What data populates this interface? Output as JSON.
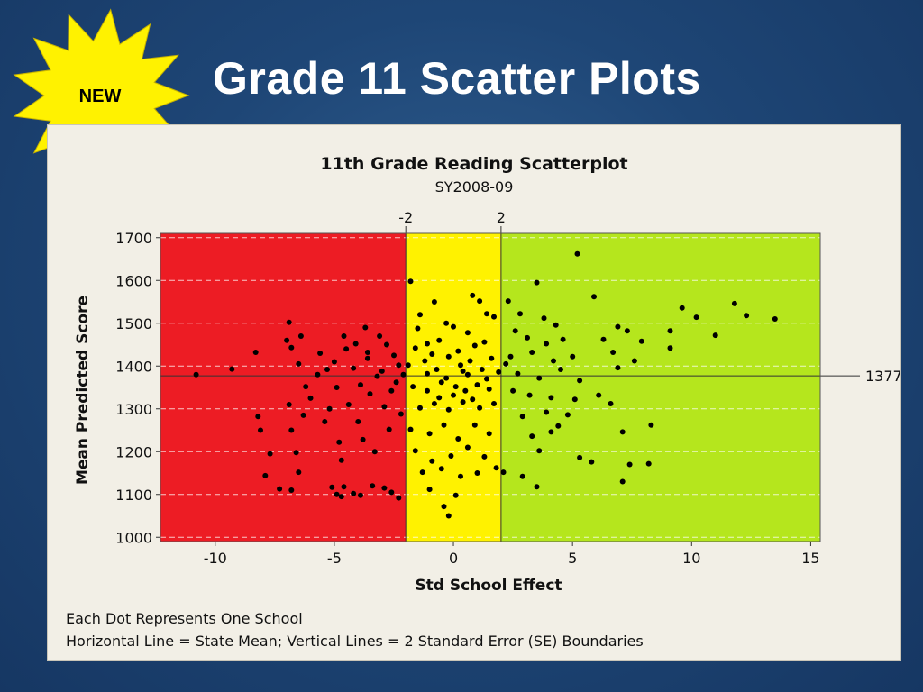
{
  "slide": {
    "title": "Grade 11 Scatter Plots",
    "badge": "NEW"
  },
  "colors": {
    "background": "#1e4676",
    "zone_red": "#ed1c24",
    "zone_yellow": "#fff200",
    "zone_green": "#b5e61d",
    "badge_fill": "#fff200",
    "dot": "#000000"
  },
  "chart_data": {
    "type": "scatter",
    "title": "11th Grade Reading Scatterplot",
    "subtitle": "SY2008-09",
    "xlabel": "Std School Effect",
    "ylabel": "Mean Predicted Score",
    "xlim": [
      -12.3,
      15.4
    ],
    "ylim": [
      990,
      1710
    ],
    "xticks": [
      -10,
      -5,
      0,
      5,
      10,
      15
    ],
    "yticks": [
      1000,
      1100,
      1200,
      1300,
      1400,
      1500,
      1600,
      1700
    ],
    "grid": "horizontal dashed",
    "vertical_lines": [
      {
        "x": -2,
        "label": "-2"
      },
      {
        "x": 2,
        "label": "2"
      }
    ],
    "reference_line": {
      "y": 1377,
      "label": "1377"
    },
    "zones": [
      {
        "name": "red",
        "from": -12.3,
        "to": -2
      },
      {
        "name": "yellow",
        "from": -2,
        "to": 2
      },
      {
        "name": "green",
        "from": 2,
        "to": 15.4
      }
    ],
    "footnotes": [
      "Each Dot Represents One School",
      "Horizontal Line = State Mean; Vertical Lines = 2 Standard Error (SE) Boundaries"
    ],
    "points": [
      [
        -10.8,
        1380
      ],
      [
        -9.3,
        1393
      ],
      [
        -8.3,
        1432
      ],
      [
        -8.2,
        1282
      ],
      [
        -8.1,
        1250
      ],
      [
        -7.9,
        1144
      ],
      [
        -7.7,
        1195
      ],
      [
        -7.3,
        1113
      ],
      [
        -7.0,
        1460
      ],
      [
        -6.9,
        1502
      ],
      [
        -6.8,
        1443
      ],
      [
        -6.9,
        1310
      ],
      [
        -6.8,
        1250
      ],
      [
        -6.8,
        1110
      ],
      [
        -6.6,
        1198
      ],
      [
        -6.5,
        1152
      ],
      [
        -6.5,
        1405
      ],
      [
        -6.4,
        1470
      ],
      [
        -6.3,
        1285
      ],
      [
        -6.2,
        1352
      ],
      [
        -6.0,
        1325
      ],
      [
        -5.7,
        1380
      ],
      [
        -5.6,
        1430
      ],
      [
        -5.4,
        1270
      ],
      [
        -5.2,
        1300
      ],
      [
        -5.0,
        1410
      ],
      [
        -4.9,
        1350
      ],
      [
        -4.8,
        1222
      ],
      [
        -4.7,
        1180
      ],
      [
        -4.5,
        1440
      ],
      [
        -4.4,
        1310
      ],
      [
        -4.2,
        1395
      ],
      [
        -4.0,
        1270
      ],
      [
        -3.9,
        1356
      ],
      [
        -3.8,
        1228
      ],
      [
        -3.7,
        1490
      ],
      [
        -3.6,
        1418
      ],
      [
        -3.5,
        1335
      ],
      [
        -3.3,
        1200
      ],
      [
        -3.1,
        1470
      ],
      [
        -3.0,
        1388
      ],
      [
        -2.9,
        1305
      ],
      [
        -2.8,
        1450
      ],
      [
        -2.7,
        1252
      ],
      [
        -2.5,
        1425
      ],
      [
        -2.4,
        1362
      ],
      [
        -2.3,
        1402
      ],
      [
        -2.2,
        1288
      ],
      [
        -5.1,
        1117
      ],
      [
        -4.9,
        1100
      ],
      [
        -4.7,
        1095
      ],
      [
        -4.6,
        1118
      ],
      [
        -4.2,
        1102
      ],
      [
        -3.9,
        1098
      ],
      [
        -3.4,
        1120
      ],
      [
        -2.9,
        1115
      ],
      [
        -2.6,
        1105
      ],
      [
        -2.3,
        1092
      ],
      [
        -4.6,
        1470
      ],
      [
        -4.1,
        1452
      ],
      [
        -3.6,
        1432
      ],
      [
        -3.2,
        1376
      ],
      [
        -2.6,
        1342
      ],
      [
        -5.3,
        1392
      ],
      [
        -1.8,
        1598
      ],
      [
        -1.5,
        1488
      ],
      [
        -1.4,
        1520
      ],
      [
        -0.8,
        1550
      ],
      [
        -0.3,
        1500
      ],
      [
        0.0,
        1492
      ],
      [
        0.6,
        1478
      ],
      [
        0.8,
        1565
      ],
      [
        1.1,
        1552
      ],
      [
        1.4,
        1522
      ],
      [
        1.7,
        1515
      ],
      [
        -1.6,
        1442
      ],
      [
        -1.1,
        1452
      ],
      [
        -0.6,
        1460
      ],
      [
        0.2,
        1435
      ],
      [
        0.9,
        1448
      ],
      [
        1.3,
        1456
      ],
      [
        -1.9,
        1402
      ],
      [
        -1.2,
        1412
      ],
      [
        -0.7,
        1392
      ],
      [
        -0.2,
        1422
      ],
      [
        0.3,
        1402
      ],
      [
        0.7,
        1412
      ],
      [
        1.2,
        1392
      ],
      [
        1.6,
        1418
      ],
      [
        -1.7,
        1352
      ],
      [
        -1.1,
        1342
      ],
      [
        -0.5,
        1362
      ],
      [
        0.1,
        1352
      ],
      [
        0.5,
        1342
      ],
      [
        1.0,
        1356
      ],
      [
        1.5,
        1346
      ],
      [
        -1.4,
        1302
      ],
      [
        -0.8,
        1312
      ],
      [
        -0.2,
        1298
      ],
      [
        0.4,
        1316
      ],
      [
        1.1,
        1302
      ],
      [
        1.7,
        1312
      ],
      [
        -1.8,
        1252
      ],
      [
        -1.0,
        1242
      ],
      [
        -0.4,
        1262
      ],
      [
        0.2,
        1230
      ],
      [
        0.9,
        1262
      ],
      [
        1.5,
        1242
      ],
      [
        -1.6,
        1202
      ],
      [
        -0.9,
        1178
      ],
      [
        -0.1,
        1190
      ],
      [
        0.6,
        1210
      ],
      [
        1.3,
        1188
      ],
      [
        -1.3,
        1152
      ],
      [
        -0.5,
        1160
      ],
      [
        0.3,
        1142
      ],
      [
        1.0,
        1150
      ],
      [
        1.8,
        1162
      ],
      [
        -1.0,
        1112
      ],
      [
        -0.4,
        1072
      ],
      [
        -0.2,
        1050
      ],
      [
        0.1,
        1098
      ],
      [
        -1.1,
        1382
      ],
      [
        -0.3,
        1372
      ],
      [
        0.6,
        1380
      ],
      [
        1.4,
        1370
      ],
      [
        -0.9,
        1428
      ],
      [
        0.4,
        1388
      ],
      [
        0.0,
        1332
      ],
      [
        -0.6,
        1326
      ],
      [
        0.8,
        1322
      ],
      [
        1.9,
        1386
      ],
      [
        2.3,
        1552
      ],
      [
        2.8,
        1522
      ],
      [
        3.5,
        1595
      ],
      [
        3.8,
        1512
      ],
      [
        4.3,
        1496
      ],
      [
        2.6,
        1482
      ],
      [
        3.1,
        1466
      ],
      [
        3.9,
        1452
      ],
      [
        4.6,
        1462
      ],
      [
        2.4,
        1422
      ],
      [
        3.3,
        1432
      ],
      [
        4.2,
        1412
      ],
      [
        5.0,
        1422
      ],
      [
        2.7,
        1382
      ],
      [
        3.6,
        1372
      ],
      [
        4.5,
        1392
      ],
      [
        5.3,
        1366
      ],
      [
        2.5,
        1342
      ],
      [
        3.2,
        1332
      ],
      [
        4.1,
        1326
      ],
      [
        5.1,
        1322
      ],
      [
        2.9,
        1282
      ],
      [
        3.9,
        1292
      ],
      [
        4.8,
        1286
      ],
      [
        3.3,
        1236
      ],
      [
        4.1,
        1246
      ],
      [
        3.6,
        1202
      ],
      [
        2.1,
        1152
      ],
      [
        2.9,
        1142
      ],
      [
        3.5,
        1118
      ],
      [
        4.4,
        1260
      ],
      [
        5.3,
        1186
      ],
      [
        5.8,
        1176
      ],
      [
        5.2,
        1662
      ],
      [
        5.9,
        1562
      ],
      [
        6.3,
        1462
      ],
      [
        6.9,
        1492
      ],
      [
        6.7,
        1432
      ],
      [
        7.3,
        1482
      ],
      [
        6.9,
        1396
      ],
      [
        7.6,
        1412
      ],
      [
        6.1,
        1332
      ],
      [
        6.6,
        1312
      ],
      [
        7.1,
        1246
      ],
      [
        7.4,
        1170
      ],
      [
        7.1,
        1130
      ],
      [
        7.9,
        1458
      ],
      [
        8.2,
        1172
      ],
      [
        8.3,
        1262
      ],
      [
        9.1,
        1442
      ],
      [
        9.1,
        1482
      ],
      [
        9.6,
        1536
      ],
      [
        10.2,
        1514
      ],
      [
        11.0,
        1472
      ],
      [
        11.8,
        1546
      ],
      [
        12.3,
        1518
      ],
      [
        13.5,
        1510
      ],
      [
        -2.1,
        1380
      ],
      [
        2.2,
        1405
      ]
    ]
  }
}
